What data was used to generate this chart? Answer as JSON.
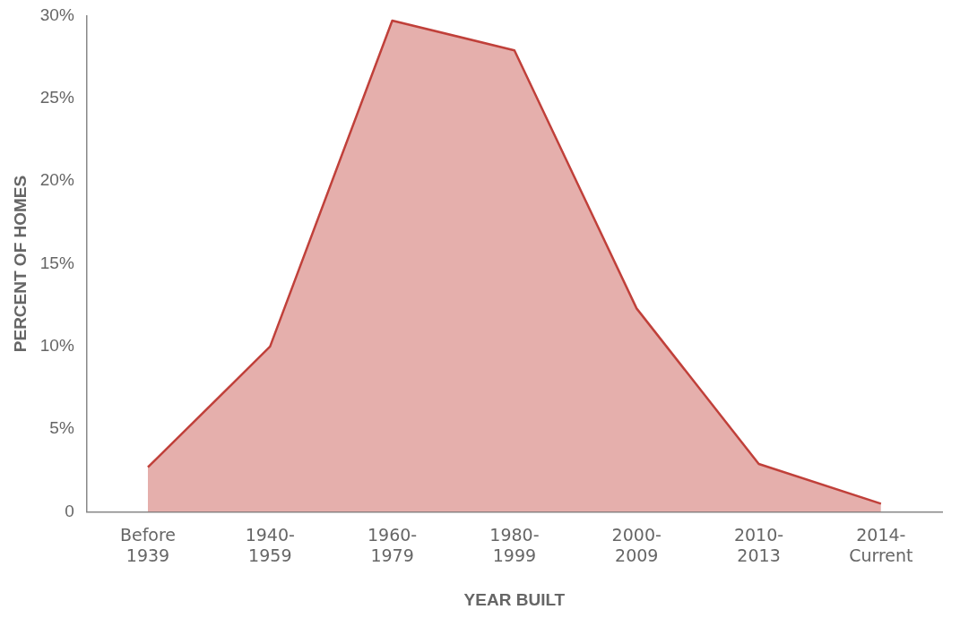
{
  "chart_data": {
    "type": "area",
    "xlabel": "YEAR BUILT",
    "ylabel": "PERCENT OF HOMES",
    "categories": [
      "Before 1939",
      "1940-1959",
      "1960-1979",
      "1980-1999",
      "2000-2009",
      "2010-2013",
      "2014-Current"
    ],
    "series": [
      {
        "color": "#c0403a",
        "values": [
          2.7,
          10.0,
          29.7,
          27.9,
          12.3,
          2.9,
          0.5
        ]
      }
    ],
    "ylim": [
      0,
      30
    ],
    "yticks": [
      {
        "value": 0,
        "label": "0"
      },
      {
        "value": 5,
        "label": "5%"
      },
      {
        "value": 10,
        "label": "10%"
      },
      {
        "value": 15,
        "label": "15%"
      },
      {
        "value": 20,
        "label": "20%"
      },
      {
        "value": 25,
        "label": "25%"
      },
      {
        "value": 30,
        "label": "30%"
      }
    ],
    "grid": false,
    "legend": false
  }
}
